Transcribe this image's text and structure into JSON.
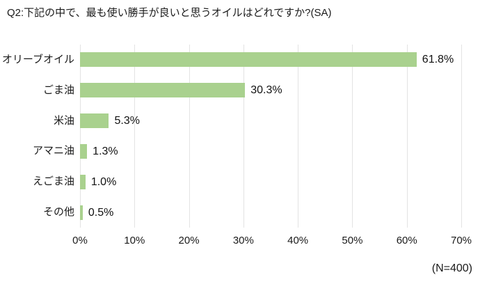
{
  "title": "Q2:下記の中で、最も使い勝手が良いと思うオイルはどれですか?(SA)",
  "sample_note": "(N=400)",
  "chart_data": {
    "type": "bar",
    "orientation": "horizontal",
    "title": "Q2:下記の中で、最も使い勝手が良いと思うオイルはどれですか?(SA)",
    "categories": [
      "オリーブオイル",
      "ごま油",
      "米油",
      "アマニ油",
      "えごま油",
      "その他"
    ],
    "values": [
      61.8,
      30.3,
      5.3,
      1.3,
      1.0,
      0.5
    ],
    "value_labels": [
      "61.8%",
      "30.3%",
      "5.3%",
      "1.3%",
      "1.0%",
      "0.5%"
    ],
    "x_ticks": [
      "0%",
      "10%",
      "20%",
      "30%",
      "40%",
      "50%",
      "60%",
      "70%"
    ],
    "xlim": [
      0,
      70
    ],
    "grid": true,
    "legend": false,
    "bar_color": "#a9d18e",
    "grid_color": "#e3e3e3",
    "sample_note": "(N=400)"
  }
}
